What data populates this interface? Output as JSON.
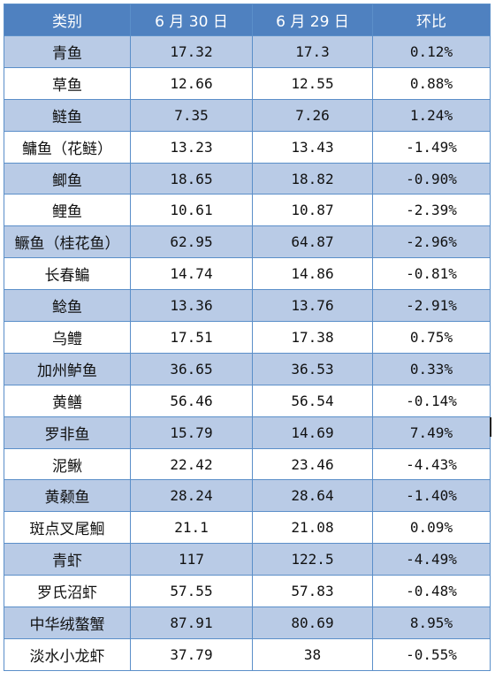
{
  "table": {
    "headers": [
      "类别",
      "6 月 30 日",
      "6 月 29 日",
      "环比"
    ],
    "rows": [
      [
        "青鱼",
        "17.32",
        "17.3",
        "0.12%"
      ],
      [
        "草鱼",
        "12.66",
        "12.55",
        "0.88%"
      ],
      [
        "鲢鱼",
        "7.35",
        "7.26",
        "1.24%"
      ],
      [
        "鳙鱼（花鲢）",
        "13.23",
        "13.43",
        "-1.49%"
      ],
      [
        "鲫鱼",
        "18.65",
        "18.82",
        "-0.90%"
      ],
      [
        "鲤鱼",
        "10.61",
        "10.87",
        "-2.39%"
      ],
      [
        "鳜鱼（桂花鱼）",
        "62.95",
        "64.87",
        "-2.96%"
      ],
      [
        "长春鳊",
        "14.74",
        "14.86",
        "-0.81%"
      ],
      [
        "鲶鱼",
        "13.36",
        "13.76",
        "-2.91%"
      ],
      [
        "乌鳢",
        "17.51",
        "17.38",
        "0.75%"
      ],
      [
        "加州鲈鱼",
        "36.65",
        "36.53",
        "0.33%"
      ],
      [
        "黄鳝",
        "56.46",
        "56.54",
        "-0.14%"
      ],
      [
        "罗非鱼",
        "15.79",
        "14.69",
        "7.49%"
      ],
      [
        "泥鳅",
        "22.42",
        "23.46",
        "-4.43%"
      ],
      [
        "黄颡鱼",
        "28.24",
        "28.64",
        "-1.40%"
      ],
      [
        "斑点叉尾鮰",
        "21.1",
        "21.08",
        "0.09%"
      ],
      [
        "青虾",
        "117",
        "122.5",
        "-4.49%"
      ],
      [
        "罗氏沼虾",
        "57.55",
        "57.83",
        "-0.48%"
      ],
      [
        "中华绒螯蟹",
        "87.91",
        "80.69",
        "8.95%"
      ],
      [
        "淡水小龙虾",
        "37.79",
        "38",
        "-0.55%"
      ]
    ]
  },
  "colors": {
    "header_bg": "#4f81c0",
    "stripe_bg": "#b9cbe6",
    "border": "#5b8fc9"
  }
}
